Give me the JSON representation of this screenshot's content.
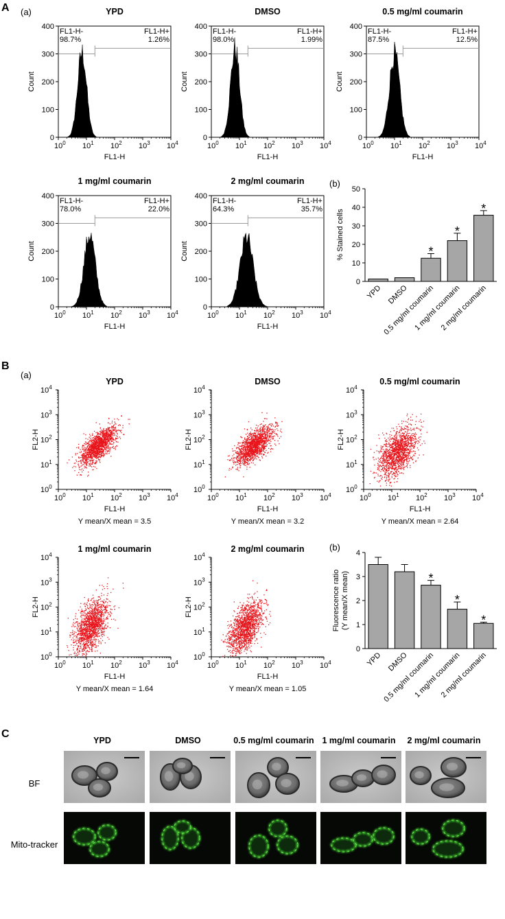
{
  "figure": {
    "section_A": "A",
    "section_B": "B",
    "section_C": "C",
    "panel_a": "(a)",
    "panel_b": "(b)"
  },
  "chart_data": [
    {
      "id": "A-hist",
      "type": "histogram",
      "xlabel": "FL1-H",
      "ylabel": "Count",
      "x_scale": "log",
      "xlim": [
        1,
        10000
      ],
      "ylim": [
        0,
        400
      ],
      "yticks": [
        0,
        100,
        200,
        300,
        400
      ],
      "gate_left_label": "FL1-H-",
      "gate_right_label": "FL1-H+",
      "panels": [
        {
          "title": "YPD",
          "neg_pct": "98.7%",
          "pos_pct": "1.26%",
          "peak_x": 7,
          "peak_count": 305,
          "spread": 0.16
        },
        {
          "title": "DMSO",
          "neg_pct": "98.0%",
          "pos_pct": "1.99%",
          "peak_x": 7,
          "peak_count": 320,
          "spread": 0.16
        },
        {
          "title": "0.5 mg/ml coumarin",
          "neg_pct": "87.5%",
          "pos_pct": "12.5%",
          "peak_x": 10,
          "peak_count": 300,
          "spread": 0.18
        },
        {
          "title": "1 mg/ml coumarin",
          "neg_pct": "78.0%",
          "pos_pct": "22.0%",
          "peak_x": 13,
          "peak_count": 260,
          "spread": 0.2
        },
        {
          "title": "2 mg/ml coumarin",
          "neg_pct": "64.3%",
          "pos_pct": "35.7%",
          "peak_x": 18,
          "peak_count": 250,
          "spread": 0.23
        }
      ]
    },
    {
      "id": "A-bar",
      "type": "bar",
      "ylabel": "% Stained cells",
      "ylim": [
        0,
        50
      ],
      "yticks": [
        0,
        10,
        20,
        30,
        40,
        50
      ],
      "categories": [
        "YPD",
        "DMSO",
        "0.5 mg/ml coumarin",
        "1 mg/ml coumarin",
        "2 mg/ml coumarin"
      ],
      "values": [
        1.3,
        2.0,
        12.5,
        22.0,
        35.7
      ],
      "errors": [
        0,
        0,
        2.5,
        4.0,
        2.5
      ],
      "significance": [
        "",
        "",
        "*",
        "*",
        "*"
      ]
    },
    {
      "id": "B-scatter",
      "type": "scatter",
      "xlabel": "FL1-H",
      "ylabel": "FL2-H",
      "x_scale": "log",
      "y_scale": "log",
      "xlim": [
        1,
        10000
      ],
      "ylim": [
        1,
        10000
      ],
      "panels": [
        {
          "title": "YPD",
          "ratio_label": "Y mean/X mean = 3.5",
          "cx": 1.4,
          "cy": 1.75,
          "sx": 0.33,
          "sy": 0.38,
          "rho": 0.72
        },
        {
          "title": "DMSO",
          "ratio_label": "Y mean/X mean = 3.2",
          "cx": 1.5,
          "cy": 1.78,
          "sx": 0.33,
          "sy": 0.38,
          "rho": 0.65
        },
        {
          "title": "0.5 mg/ml coumarin",
          "ratio_label": "Y mean/X mean = 2.64",
          "cx": 1.2,
          "cy": 1.5,
          "sx": 0.33,
          "sy": 0.5,
          "rho": 0.5
        },
        {
          "title": "1 mg/ml coumarin",
          "ratio_label": "Y mean/X mean = 1.64",
          "cx": 1.15,
          "cy": 1.25,
          "sx": 0.3,
          "sy": 0.55,
          "rho": 0.55
        },
        {
          "title": "2 mg/ml coumarin",
          "ratio_label": "Y mean/X mean = 1.05",
          "cx": 1.2,
          "cy": 1.2,
          "sx": 0.3,
          "sy": 0.5,
          "rho": 0.5
        }
      ]
    },
    {
      "id": "B-bar",
      "type": "bar",
      "ylabel": "Fluorescence ratio (Y mean/X mean)",
      "ylim": [
        0,
        4
      ],
      "yticks": [
        0,
        1,
        2,
        3,
        4
      ],
      "categories": [
        "YPD",
        "DMSO",
        "0.5 mg/ml coumarin",
        "1 mg/ml coumarin",
        "2 mg/ml coumarin"
      ],
      "values": [
        3.5,
        3.2,
        2.64,
        1.64,
        1.05
      ],
      "errors": [
        0.3,
        0.3,
        0.2,
        0.3,
        0.05
      ],
      "significance": [
        "",
        "",
        "*",
        "*",
        "*"
      ]
    }
  ],
  "microscopy": {
    "columns": [
      "YPD",
      "DMSO",
      "0.5 mg/ml coumarin",
      "1 mg/ml coumarin",
      "2 mg/ml coumarin"
    ],
    "row_bf": "BF",
    "row_mito": "Mito-tracker"
  }
}
